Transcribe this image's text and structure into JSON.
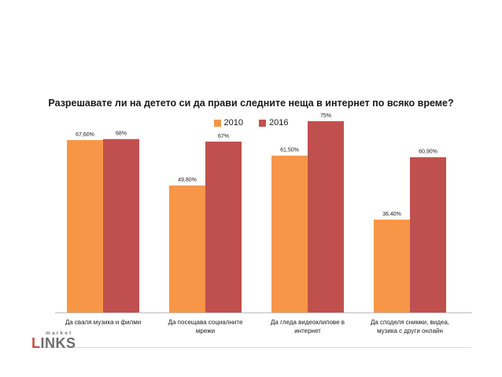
{
  "chart_data": {
    "type": "bar",
    "title": "Разрешавате ли на детето си да прави следните неща в интернет по всяко време?",
    "categories": [
      [
        "Да сваля музика и филми"
      ],
      [
        "Да посещава социалните",
        "мрежи"
      ],
      [
        "Да гледа видеоклипове в",
        "интернет"
      ],
      [
        "Да споделя снимки, видеа,",
        "музика с други онлайн"
      ]
    ],
    "series": [
      {
        "name": "2010",
        "color": "#f79646",
        "values": [
          67.6,
          49.8,
          61.5,
          36.4
        ],
        "labels": [
          "67,60%",
          "49,80%",
          "61,50%",
          "36,40%"
        ]
      },
      {
        "name": "2016",
        "color": "#c0504d",
        "values": [
          68,
          67,
          75,
          60.9
        ],
        "labels": [
          "68%",
          "67%",
          "75%",
          "60,90%"
        ]
      }
    ],
    "ylim": [
      0,
      75
    ],
    "grid": false,
    "legend_position": "top-center"
  },
  "logo": {
    "small_text": "market",
    "main_first": "L",
    "main_rest": "INKS"
  }
}
